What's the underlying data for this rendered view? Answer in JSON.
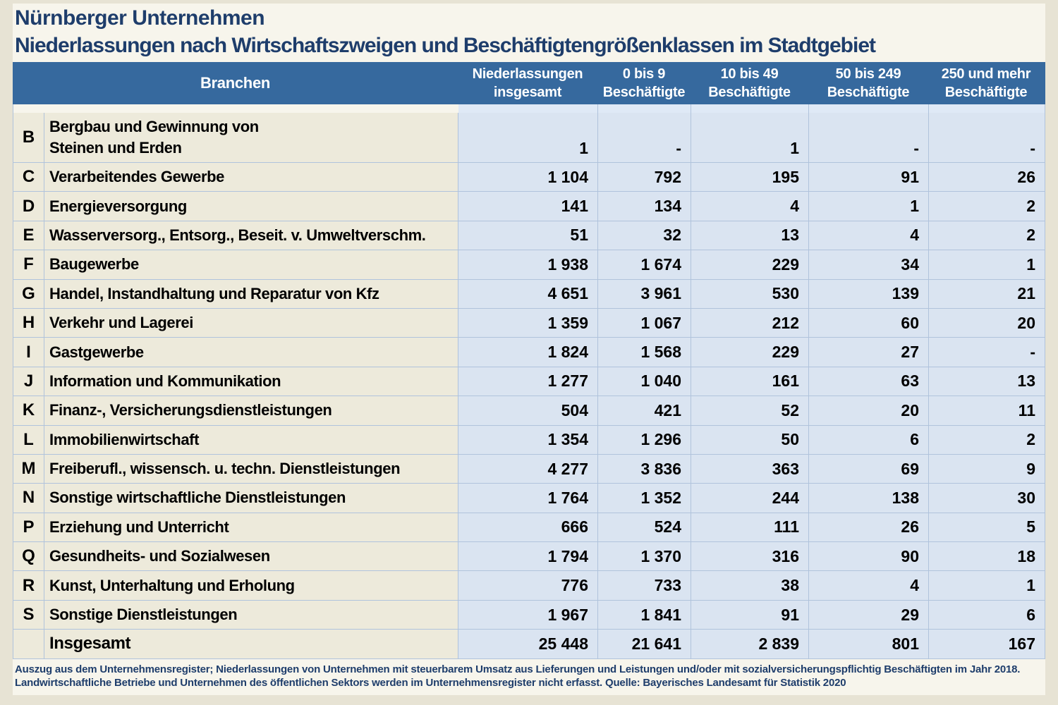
{
  "page": {
    "title": "Nürnberger Unternehmen",
    "subtitle": "Niederlassungen nach Wirtschaftszweigen und Beschäftigtengrößenklassen im Stadtgebiet"
  },
  "colors": {
    "page_background": "#e7e3d4",
    "panel_background": "#f7f5ec",
    "header_bar": "#36699e",
    "header_text": "#ffffff",
    "title_text": "#1e3d6b",
    "branch_cell_background": "#edeadb",
    "data_cell_background": "#dae4f1",
    "grid_line": "#b0c3dc",
    "body_text": "#000000"
  },
  "table": {
    "branch_header": "Branchen",
    "col_headers": [
      {
        "line1": "Niederlassungen",
        "line2": "insgesamt"
      },
      {
        "line1": "0 bis 9",
        "line2": "Beschäftigte"
      },
      {
        "line1": "10 bis 49",
        "line2": "Beschäftigte"
      },
      {
        "line1": "50 bis 249",
        "line2": "Beschäftigte"
      },
      {
        "line1": "250 und mehr",
        "line2": "Beschäftigte"
      }
    ],
    "rows": [
      {
        "code": "B",
        "name": "Bergbau und Gewinnung von",
        "name2": "Steinen und Erden",
        "values": [
          "1",
          "-",
          "1",
          "-",
          "-"
        ]
      },
      {
        "code": "C",
        "name": "Verarbeitendes Gewerbe",
        "values": [
          "1 104",
          "792",
          "195",
          "91",
          "26"
        ]
      },
      {
        "code": "D",
        "name": "Energieversorgung",
        "values": [
          "141",
          "134",
          "4",
          "1",
          "2"
        ]
      },
      {
        "code": "E",
        "name": "Wasserversorg., Entsorg., Beseit. v. Umweltverschm.",
        "values": [
          "51",
          "32",
          "13",
          "4",
          "2"
        ]
      },
      {
        "code": "F",
        "name": "Baugewerbe",
        "values": [
          "1 938",
          "1 674",
          "229",
          "34",
          "1"
        ]
      },
      {
        "code": "G",
        "name": "Handel, Instandhaltung und Reparatur von Kfz",
        "values": [
          "4 651",
          "3 961",
          "530",
          "139",
          "21"
        ]
      },
      {
        "code": "H",
        "name": "Verkehr und Lagerei",
        "values": [
          "1 359",
          "1 067",
          "212",
          "60",
          "20"
        ]
      },
      {
        "code": "I",
        "name": "Gastgewerbe",
        "values": [
          "1 824",
          "1 568",
          "229",
          "27",
          "-"
        ]
      },
      {
        "code": "J",
        "name": "Information und Kommunikation",
        "values": [
          "1 277",
          "1 040",
          "161",
          "63",
          "13"
        ]
      },
      {
        "code": "K",
        "name": "Finanz-, Versicherungsdienstleistungen",
        "values": [
          "504",
          "421",
          "52",
          "20",
          "11"
        ]
      },
      {
        "code": "L",
        "name": "Immobilienwirtschaft",
        "values": [
          "1 354",
          "1 296",
          "50",
          "6",
          "2"
        ]
      },
      {
        "code": "M",
        "name": "Freiberufl., wissensch. u. techn. Dienstleistungen",
        "values": [
          "4 277",
          "3 836",
          "363",
          "69",
          "9"
        ]
      },
      {
        "code": "N",
        "name": "Sonstige wirtschaftliche Dienstleistungen",
        "values": [
          "1 764",
          "1 352",
          "244",
          "138",
          "30"
        ]
      },
      {
        "code": "P",
        "name": "Erziehung und Unterricht",
        "values": [
          "666",
          "524",
          "111",
          "26",
          "5"
        ]
      },
      {
        "code": "Q",
        "name": "Gesundheits- und Sozialwesen",
        "values": [
          "1 794",
          "1 370",
          "316",
          "90",
          "18"
        ]
      },
      {
        "code": "R",
        "name": "Kunst, Unterhaltung und Erholung",
        "values": [
          "776",
          "733",
          "38",
          "4",
          "1"
        ]
      },
      {
        "code": "S",
        "name": "Sonstige Dienstleistungen",
        "values": [
          "1 967",
          "1 841",
          "91",
          "29",
          "6"
        ]
      }
    ],
    "total_row": {
      "code": "",
      "name": "Insgesamt",
      "values": [
        "25 448",
        "21 641",
        "2 839",
        "801",
        "167"
      ]
    }
  },
  "footnote": {
    "line1": "Auszug aus dem Unternehmensregister; Niederlassungen von Unternehmen mit steuerbarem Umsatz aus Lieferungen und Leistungen und/oder mit sozialversicherungspflichtig Beschäftigten im Jahr 2018.",
    "line2": "Landwirtschaftliche Betriebe und Unternehmen des öffentlichen Sektors werden im Unternehmensregister nicht erfasst.  Quelle: Bayerisches Landesamt für Statistik 2020"
  }
}
